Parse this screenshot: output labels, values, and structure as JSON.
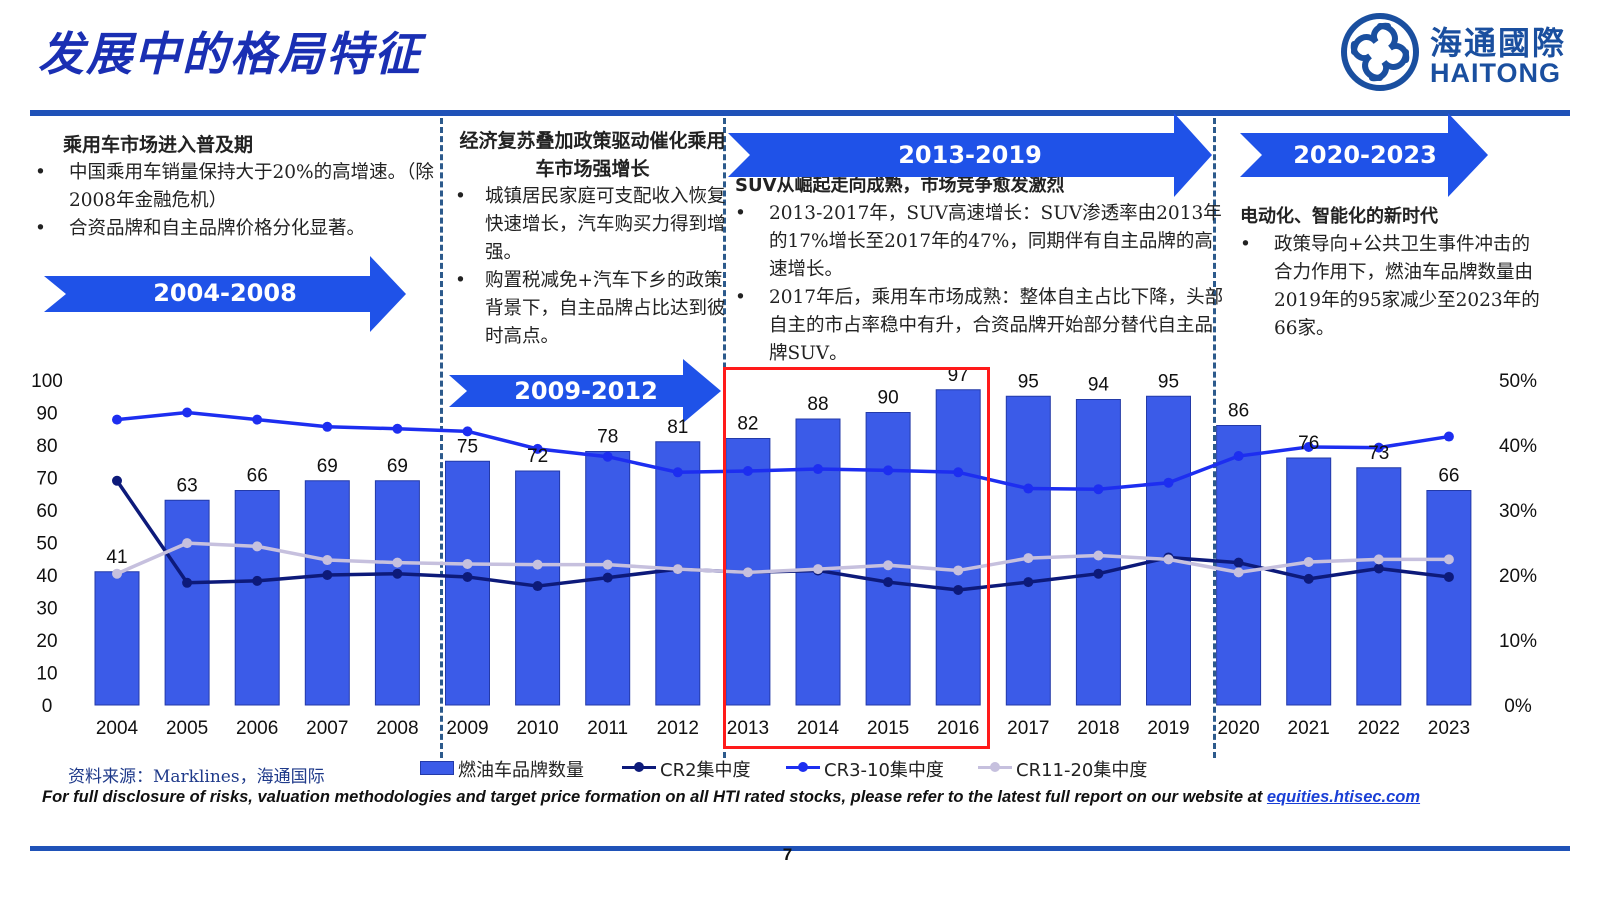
{
  "slide": {
    "title": "发展中的格局特征",
    "page_number": "7"
  },
  "logo": {
    "name_cn": "海通國際",
    "name_en": "HAITONG",
    "icon": "haitong-swirl-icon"
  },
  "colors": {
    "accent": "#1f52b8",
    "bar": "#3b5be8",
    "cr2": "#0d1a7a",
    "cr3_10": "#1d2ef0",
    "cr11_20": "#c6c0de",
    "highlight": "#ff1a1a"
  },
  "eras": [
    {
      "heading": "乘用车市场进入普及期",
      "bullets": [
        "中国乘用车销量保持大于20%的高增速。（除2008年金融危机）",
        "合资品牌和自主品牌价格分化显著。"
      ],
      "arrow_label": "2004-2008"
    },
    {
      "heading": "经济复苏叠加政策驱动催化乘用车市场强增长",
      "bullets": [
        "城镇居民家庭可支配收入恢复快速增长，汽车购买力得到增强。",
        "购置税减免+汽车下乡的政策背景下，自主品牌占比达到彼时高点。"
      ],
      "arrow_label": "2009-2012"
    },
    {
      "heading": "SUV从崛起走向成熟，市场竞争愈发激烈",
      "bullets": [
        "2013-2017年，SUV高速增长：SUV渗透率由2013年的17%增长至2017年的47%，同期伴有自主品牌的高速增长。",
        "2017年后，乘用车市场成熟：整体自主占比下降，头部自主的市占率稳中有升，合资品牌开始部分替代自主品牌SUV。"
      ],
      "arrow_label": "2013-2019"
    },
    {
      "heading": "电动化、智能化的新时代",
      "bullets": [
        "政策导向+公共卫生事件冲击的合力作用下，燃油车品牌数量由2019年的95家减少至2023年的66家。"
      ],
      "arrow_label": "2020-2023"
    }
  ],
  "chart_data": {
    "type": "bar",
    "categories": [
      "2004",
      "2005",
      "2006",
      "2007",
      "2008",
      "2009",
      "2010",
      "2011",
      "2012",
      "2013",
      "2014",
      "2015",
      "2016",
      "2017",
      "2018",
      "2019",
      "2020",
      "2021",
      "2022",
      "2023"
    ],
    "series": [
      {
        "name": "燃油车品牌数量",
        "type": "bar",
        "axis": "left",
        "values": [
          41,
          63,
          66,
          69,
          69,
          75,
          72,
          78,
          81,
          82,
          88,
          90,
          97,
          95,
          94,
          95,
          86,
          76,
          73,
          66
        ]
      },
      {
        "name": "CR2集中度",
        "type": "line",
        "axis": "right",
        "values": [
          34.5,
          18.8,
          19.1,
          20.0,
          20.2,
          19.7,
          18.3,
          19.6,
          20.9,
          20.4,
          20.7,
          18.9,
          17.7,
          18.9,
          20.2,
          22.7,
          21.9,
          19.4,
          21.0,
          19.7
        ]
      },
      {
        "name": "CR3-10集中度",
        "type": "line",
        "axis": "right",
        "values": [
          43.9,
          45.0,
          43.9,
          42.8,
          42.5,
          42.1,
          39.4,
          38.2,
          35.8,
          36.0,
          36.3,
          36.1,
          35.8,
          33.3,
          33.2,
          34.2,
          38.3,
          39.7,
          39.6,
          41.3
        ]
      },
      {
        "name": "CR11-20集中度",
        "type": "line",
        "axis": "right",
        "values": [
          20.2,
          24.9,
          24.4,
          22.3,
          21.9,
          21.7,
          21.6,
          21.6,
          20.9,
          20.4,
          20.9,
          21.5,
          20.7,
          22.6,
          23.0,
          22.4,
          20.4,
          22.0,
          22.4,
          22.4
        ]
      }
    ],
    "ylim_left": [
      0,
      100
    ],
    "yticks_left": [
      "0",
      "10",
      "20",
      "30",
      "40",
      "50",
      "60",
      "70",
      "80",
      "90",
      "100"
    ],
    "ylim_right": [
      0,
      50
    ],
    "yticks_right": [
      "0%",
      "10%",
      "20%",
      "30%",
      "40%",
      "50%"
    ],
    "legend": "bottom",
    "grid": false,
    "highlight_range": [
      "2013",
      "2016"
    ]
  },
  "footer": {
    "source": "资料来源：Marklines，海通国际",
    "disclosure": "For full disclosure of risks, valuation methodologies and target price formation on all HTI rated stocks, please refer to the latest full report on our website at",
    "link": "equities.htisec.com"
  }
}
